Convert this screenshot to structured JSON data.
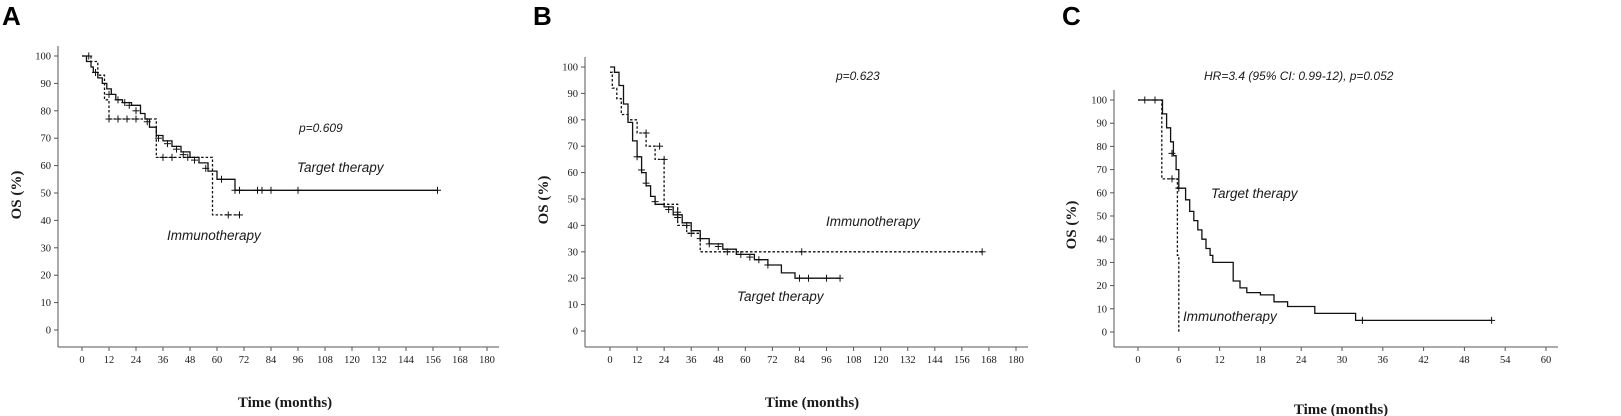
{
  "chart_data": [
    {
      "type": "line",
      "panel": "A",
      "xlabel": "Time (months)",
      "ylabel": "OS (%)",
      "xlim": [
        0,
        180
      ],
      "ylim": [
        0,
        100
      ],
      "xticks": [
        0,
        12,
        24,
        36,
        48,
        60,
        72,
        84,
        96,
        108,
        120,
        132,
        144,
        156,
        168,
        180
      ],
      "yticks": [
        0,
        10,
        20,
        30,
        40,
        50,
        60,
        70,
        80,
        90,
        100
      ],
      "annotation": "p=0.609",
      "series": [
        {
          "name": "Target therapy",
          "style": "solid",
          "x": [
            0,
            2,
            4,
            5,
            7,
            9,
            11,
            13,
            15,
            18,
            22,
            26,
            28,
            30,
            33,
            36,
            40,
            44,
            48,
            52,
            56,
            60,
            66,
            68,
            158
          ],
          "y": [
            100,
            98,
            96,
            94,
            92,
            90,
            88,
            86,
            84,
            83,
            82,
            79,
            77,
            74,
            71,
            69,
            67,
            65,
            63,
            61,
            58,
            55,
            55,
            51,
            51
          ],
          "censored": [
            [
              6,
              94
            ],
            [
              12,
              86
            ],
            [
              16,
              84
            ],
            [
              19,
              83
            ],
            [
              21,
              82
            ],
            [
              24,
              80
            ],
            [
              29,
              76
            ],
            [
              34,
              70
            ],
            [
              38,
              68
            ],
            [
              42,
              66
            ],
            [
              45,
              64
            ],
            [
              47,
              63
            ],
            [
              50,
              62
            ],
            [
              55,
              59
            ],
            [
              62,
              55
            ],
            [
              68,
              51
            ],
            [
              70,
              51
            ],
            [
              78,
              51
            ],
            [
              80,
              51
            ],
            [
              84,
              51
            ],
            [
              96,
              51
            ],
            [
              158,
              51
            ]
          ]
        },
        {
          "name": "Immunotherapy",
          "style": "dashed",
          "x": [
            0,
            4,
            7,
            10,
            12,
            30,
            33,
            48,
            56,
            58,
            70
          ],
          "y": [
            100,
            98,
            93,
            84,
            77,
            77,
            63,
            63,
            63,
            42,
            42
          ],
          "censored": [
            [
              3,
              100
            ],
            [
              12,
              77
            ],
            [
              16,
              77
            ],
            [
              20,
              77
            ],
            [
              24,
              77
            ],
            [
              36,
              63
            ],
            [
              40,
              63
            ],
            [
              65,
              42
            ],
            [
              70,
              42
            ]
          ]
        }
      ]
    },
    {
      "type": "line",
      "panel": "B",
      "xlabel": "Time (months)",
      "ylabel": "OS (%)",
      "xlim": [
        0,
        180
      ],
      "ylim": [
        0,
        100
      ],
      "xticks": [
        0,
        12,
        24,
        36,
        48,
        60,
        72,
        84,
        96,
        108,
        120,
        132,
        144,
        156,
        168,
        180
      ],
      "yticks": [
        0,
        10,
        20,
        30,
        40,
        50,
        60,
        70,
        80,
        90,
        100
      ],
      "annotation": "p=0.623",
      "series": [
        {
          "name": "Target therapy",
          "style": "solid",
          "x": [
            0,
            2,
            4,
            6,
            8,
            10,
            12,
            14,
            16,
            18,
            20,
            24,
            28,
            32,
            36,
            40,
            44,
            50,
            56,
            64,
            70,
            76,
            82,
            102
          ],
          "y": [
            100,
            98,
            93,
            86,
            79,
            72,
            66,
            60,
            55,
            51,
            48,
            47,
            44,
            41,
            38,
            35,
            33,
            31,
            29,
            27,
            25,
            22,
            20,
            20
          ],
          "censored": [
            [
              12,
              66
            ],
            [
              14,
              61
            ],
            [
              16,
              56
            ],
            [
              20,
              49
            ],
            [
              26,
              46
            ],
            [
              30,
              43
            ],
            [
              34,
              40
            ],
            [
              40,
              35
            ],
            [
              44,
              33
            ],
            [
              48,
              32
            ],
            [
              52,
              30
            ],
            [
              58,
              29
            ],
            [
              62,
              28
            ],
            [
              66,
              27
            ],
            [
              70,
              25
            ],
            [
              84,
              20
            ],
            [
              88,
              20
            ],
            [
              96,
              20
            ],
            [
              102,
              20
            ]
          ]
        },
        {
          "name": "Immunotherapy",
          "style": "dashed",
          "x": [
            0,
            1,
            3,
            5,
            8,
            12,
            16,
            20,
            24,
            28,
            30,
            34,
            38,
            40,
            165
          ],
          "y": [
            98,
            92,
            88,
            82,
            80,
            75,
            70,
            65,
            48,
            48,
            40,
            37,
            37,
            30,
            30
          ],
          "censored": [
            [
              16,
              75
            ],
            [
              22,
              70
            ],
            [
              24,
              65
            ],
            [
              30,
              45
            ],
            [
              36,
              37
            ],
            [
              85,
              30
            ],
            [
              165,
              30
            ]
          ]
        }
      ]
    },
    {
      "type": "line",
      "panel": "C",
      "xlabel": "Time (months)",
      "ylabel": "OS (%)",
      "xlim": [
        0,
        60
      ],
      "ylim": [
        0,
        100
      ],
      "xticks": [
        0,
        6,
        12,
        18,
        24,
        30,
        36,
        42,
        48,
        54,
        60
      ],
      "yticks": [
        0,
        10,
        20,
        30,
        40,
        50,
        60,
        70,
        80,
        90,
        100
      ],
      "annotation": "HR=3.4 (95% CI: 0.99-12), p=0.052",
      "series": [
        {
          "name": "Target therapy",
          "style": "solid",
          "x": [
            0,
            3,
            3.6,
            4.2,
            4.8,
            5.2,
            5.6,
            6,
            7,
            7.6,
            8.2,
            8.8,
            9.4,
            10,
            10.6,
            11,
            11.6,
            14,
            15,
            16,
            18,
            20,
            22,
            26,
            32,
            52
          ],
          "y": [
            100,
            100,
            94,
            88,
            82,
            76,
            70,
            62,
            57,
            52,
            48,
            44,
            40,
            36,
            33,
            30,
            30,
            22,
            19,
            17,
            16,
            13,
            11,
            8,
            5,
            5
          ],
          "censored": [
            [
              1,
              100
            ],
            [
              5,
              77
            ],
            [
              6,
              62
            ],
            [
              33,
              5
            ],
            [
              52,
              5
            ]
          ]
        },
        {
          "name": "Immunotherapy",
          "style": "dashed",
          "x": [
            0,
            3.5,
            5,
            5.8,
            6
          ],
          "y": [
            100,
            66,
            66,
            33,
            0
          ],
          "censored": [
            [
              2.5,
              100
            ],
            [
              5,
              66
            ]
          ]
        }
      ]
    }
  ]
}
